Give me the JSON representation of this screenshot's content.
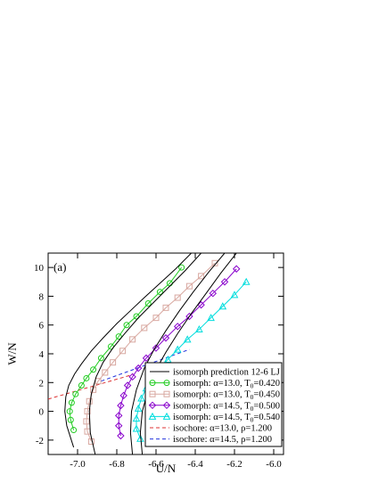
{
  "chart_data": {
    "type": "line",
    "panel_label": "(a)",
    "xlabel": "U/N",
    "ylabel": "W/N",
    "xlim": [
      -7.15,
      -5.95
    ],
    "ylim": [
      -3,
      11
    ],
    "xticks": [
      -7.0,
      -6.8,
      -6.6,
      -6.4,
      -6.2,
      -6.0
    ],
    "xtick_labels": [
      "-7.0",
      "-6.8",
      "-6.6",
      "-6.4",
      "-6.2",
      "-6.0"
    ],
    "yticks": [
      -2,
      0,
      2,
      4,
      6,
      8,
      10
    ],
    "ytick_labels": [
      "-2",
      "0",
      "2",
      "4",
      "6",
      "8",
      "10"
    ],
    "grid": false,
    "legend_position": "bottom-right",
    "series": [
      {
        "name": "isomorph: α=13.0, T0=0.420",
        "label_main": "isomorph: α=13.0, T",
        "label_sub": "0",
        "label_tail": "=0.420",
        "color": "#22cc22",
        "marker": "circle",
        "x": [
          -7.02,
          -7.035,
          -7.04,
          -7.03,
          -7.01,
          -6.98,
          -6.955,
          -6.92,
          -6.88,
          -6.83,
          -6.79,
          -6.75,
          -6.7,
          -6.64,
          -6.58,
          -6.53,
          -6.47
        ],
        "y": [
          -1.3,
          -0.6,
          0.0,
          0.6,
          1.2,
          1.8,
          2.3,
          2.9,
          3.7,
          4.5,
          5.2,
          6.0,
          6.6,
          7.5,
          8.3,
          8.9,
          10.0
        ]
      },
      {
        "name": "isomorph: α=13.0, T0=0.450",
        "label_main": "isomorph: α=13.0, T",
        "label_sub": "0",
        "label_tail": "=0.450",
        "color": "#d8a8a0",
        "marker": "square",
        "x": [
          -6.93,
          -6.95,
          -6.955,
          -6.95,
          -6.94,
          -6.92,
          -6.895,
          -6.86,
          -6.82,
          -6.77,
          -6.72,
          -6.66,
          -6.6,
          -6.55,
          -6.49,
          -6.43,
          -6.37,
          -6.3
        ],
        "y": [
          -2.1,
          -1.4,
          -0.7,
          0.0,
          0.7,
          1.5,
          2.1,
          2.7,
          3.4,
          4.2,
          5.0,
          5.8,
          6.5,
          7.2,
          7.9,
          8.7,
          9.4,
          10.3
        ]
      },
      {
        "name": "isomorph: α=14.5, T0=0.500",
        "label_main": "isomorph: α=14.5, T",
        "label_sub": "0",
        "label_tail": "=0.500",
        "color": "#8800cc",
        "marker": "diamond",
        "x": [
          -6.78,
          -6.79,
          -6.79,
          -6.78,
          -6.765,
          -6.745,
          -6.72,
          -6.69,
          -6.65,
          -6.6,
          -6.55,
          -6.49,
          -6.43,
          -6.37,
          -6.31,
          -6.25,
          -6.19
        ],
        "y": [
          -1.7,
          -1.0,
          -0.3,
          0.4,
          1.1,
          1.8,
          2.4,
          3.0,
          3.7,
          4.4,
          5.1,
          5.9,
          6.6,
          7.4,
          8.2,
          9.0,
          9.9
        ]
      },
      {
        "name": "isomorph: α=14.5, T0=0.540",
        "label_main": "isomorph: α=14.5, T",
        "label_sub": "0",
        "label_tail": "=0.540",
        "color": "#00dddd",
        "marker": "triangle",
        "x": [
          -6.68,
          -6.7,
          -6.7,
          -6.69,
          -6.675,
          -6.65,
          -6.62,
          -6.58,
          -6.54,
          -6.49,
          -6.44,
          -6.38,
          -6.32,
          -6.26,
          -6.2,
          -6.14
        ],
        "y": [
          -1.9,
          -1.2,
          -0.5,
          0.2,
          0.9,
          1.6,
          2.3,
          3.0,
          3.6,
          4.3,
          5.0,
          5.7,
          6.5,
          7.3,
          8.1,
          9.0
        ]
      }
    ],
    "prediction": {
      "name": "isomorph prediction 12-6 LJ",
      "color": "#000000",
      "curves": [
        {
          "x": [
            -7.02,
            -7.055,
            -7.065,
            -7.06,
            -7.045,
            -7.015,
            -6.98,
            -6.93,
            -6.87,
            -6.8,
            -6.73,
            -6.66,
            -6.58,
            -6.5,
            -6.42
          ],
          "y": [
            -2.5,
            -1.0,
            0.0,
            1.0,
            1.8,
            2.6,
            3.3,
            4.2,
            5.1,
            6.1,
            7.0,
            7.9,
            8.9,
            9.9,
            11.0
          ]
        },
        {
          "x": [
            -6.91,
            -6.935,
            -6.94,
            -6.93,
            -6.905,
            -6.87,
            -6.82,
            -6.76,
            -6.69,
            -6.61,
            -6.53,
            -6.45,
            -6.37
          ],
          "y": [
            -3.0,
            -1.5,
            0.0,
            1.2,
            2.4,
            3.4,
            4.4,
            5.4,
            6.5,
            7.6,
            8.7,
            9.8,
            11.0
          ]
        },
        {
          "x": [
            -6.72,
            -6.73,
            -6.725,
            -6.7,
            -6.66,
            -6.61,
            -6.55,
            -6.48,
            -6.41,
            -6.33,
            -6.25
          ],
          "y": [
            -3.0,
            -1.5,
            0.0,
            1.5,
            3.0,
            4.3,
            5.6,
            7.0,
            8.3,
            9.7,
            11.0
          ]
        },
        {
          "x": [
            -6.67,
            -6.68,
            -6.67,
            -6.64,
            -6.6,
            -6.55,
            -6.49,
            -6.42,
            -6.35,
            -6.27,
            -6.19
          ],
          "y": [
            -3.0,
            -1.5,
            0.0,
            1.5,
            2.9,
            4.1,
            5.4,
            6.8,
            8.1,
            9.6,
            11.0
          ]
        }
      ]
    },
    "isochores": [
      {
        "name": "isochore: α=13.0, ρ=1.200",
        "label_main": "isochore: α=13.0, ρ=1.200",
        "color": "#dd3333",
        "x": [
          -7.15,
          -6.72
        ],
        "y": [
          0.85,
          2.55
        ]
      },
      {
        "name": "isochore: α=14.5, ρ=1.200",
        "label_main": "isochore: α=14.5, ρ=1.200",
        "color": "#2233dd",
        "x": [
          -6.88,
          -6.43
        ],
        "y": [
          2.1,
          4.3
        ]
      }
    ]
  }
}
